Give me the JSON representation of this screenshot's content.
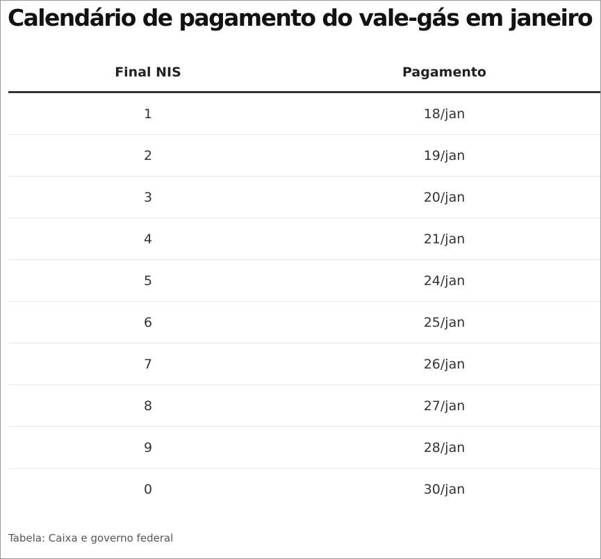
{
  "title": "Calendário de pagamento do vale-gás em janeiro",
  "table": {
    "headers": [
      "Final NIS",
      "Pagamento"
    ],
    "rows": [
      [
        "1",
        "18/jan"
      ],
      [
        "2",
        "19/jan"
      ],
      [
        "3",
        "20/jan"
      ],
      [
        "4",
        "21/jan"
      ],
      [
        "5",
        "24/jan"
      ],
      [
        "6",
        "25/jan"
      ],
      [
        "7",
        "26/jan"
      ],
      [
        "8",
        "27/jan"
      ],
      [
        "9",
        "28/jan"
      ],
      [
        "0",
        "30/jan"
      ]
    ]
  },
  "source": "Tabela: Caixa e governo federal"
}
